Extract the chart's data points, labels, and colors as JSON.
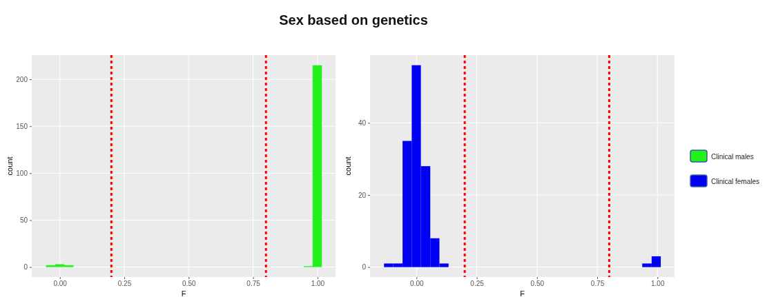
{
  "chart_data": [
    {
      "type": "histogram",
      "title": "Sex based on genetics",
      "xlabel": "F",
      "ylabel": "count",
      "bins": [
        -0.054,
        -0.018,
        0.017,
        0.053,
        0.089,
        0.125,
        0.16,
        0.196,
        0.232,
        0.267,
        0.303,
        0.339,
        0.374,
        0.41,
        0.446,
        0.482,
        0.517,
        0.553,
        0.589,
        0.624,
        0.66,
        0.696,
        0.731,
        0.767,
        0.803,
        0.839,
        0.874,
        0.91,
        0.946,
        0.981,
        1.017
      ],
      "series": [
        {
          "name": "Clinical males",
          "color": "#22f21b",
          "values": [
            2,
            3,
            2,
            0,
            0,
            0,
            0,
            0,
            0,
            0,
            0,
            0,
            0,
            0,
            0,
            0,
            0,
            0,
            0,
            0,
            0,
            0,
            0,
            0,
            0,
            0,
            0,
            0,
            1,
            215
          ]
        }
      ],
      "xlim": [
        -0.109,
        1.07
      ],
      "ylim": [
        -10.6,
        225.8
      ],
      "xticks": [
        {
          "value": 0,
          "label": "0.00"
        },
        {
          "value": 0.25,
          "label": "0.25"
        },
        {
          "value": 0.5,
          "label": "0.50"
        },
        {
          "value": 0.75,
          "label": "0.75"
        },
        {
          "value": 1,
          "label": "1.00"
        }
      ],
      "yticks": [
        0,
        50,
        100,
        150,
        200
      ],
      "ref_lines": [
        {
          "axis": "x",
          "value": 0.2,
          "color": "#ff0000",
          "line_style": "dotted"
        },
        {
          "axis": "x",
          "value": 0.8,
          "color": "#ff0000",
          "line_style": "dotted"
        }
      ],
      "grid": true,
      "legend": "right"
    },
    {
      "type": "histogram",
      "xlabel": "F",
      "ylabel": "count",
      "bins": [
        -0.135,
        -0.097,
        -0.058,
        -0.02,
        0.018,
        0.057,
        0.095,
        0.133,
        0.171,
        0.21,
        0.248,
        0.286,
        0.325,
        0.363,
        0.401,
        0.44,
        0.478,
        0.516,
        0.554,
        0.593,
        0.631,
        0.669,
        0.708,
        0.746,
        0.784,
        0.823,
        0.861,
        0.899,
        0.937,
        0.976,
        1.014
      ],
      "series": [
        {
          "name": "Clinical females",
          "color": "#0000f5",
          "values": [
            1,
            1,
            35,
            56,
            28,
            8,
            1,
            0,
            0,
            0,
            0,
            0,
            0,
            0,
            0,
            0,
            0,
            0,
            0,
            0,
            0,
            0,
            0,
            0,
            0,
            0,
            0,
            0,
            1,
            3
          ]
        }
      ],
      "xlim": [
        -0.193,
        1.071
      ],
      "ylim": [
        -2.75,
        58.8
      ],
      "xticks": [
        {
          "value": 0,
          "label": "0.00"
        },
        {
          "value": 0.25,
          "label": "0.25"
        },
        {
          "value": 0.5,
          "label": "0.50"
        },
        {
          "value": 0.75,
          "label": "0.75"
        },
        {
          "value": 1,
          "label": "1.00"
        }
      ],
      "yticks": [
        0,
        20,
        40
      ],
      "ref_lines": [
        {
          "axis": "x",
          "value": 0.2,
          "color": "#ff0000",
          "line_style": "dotted"
        },
        {
          "axis": "x",
          "value": 0.8,
          "color": "#ff0000",
          "line_style": "dotted"
        }
      ],
      "grid": true,
      "legend": "right"
    }
  ]
}
